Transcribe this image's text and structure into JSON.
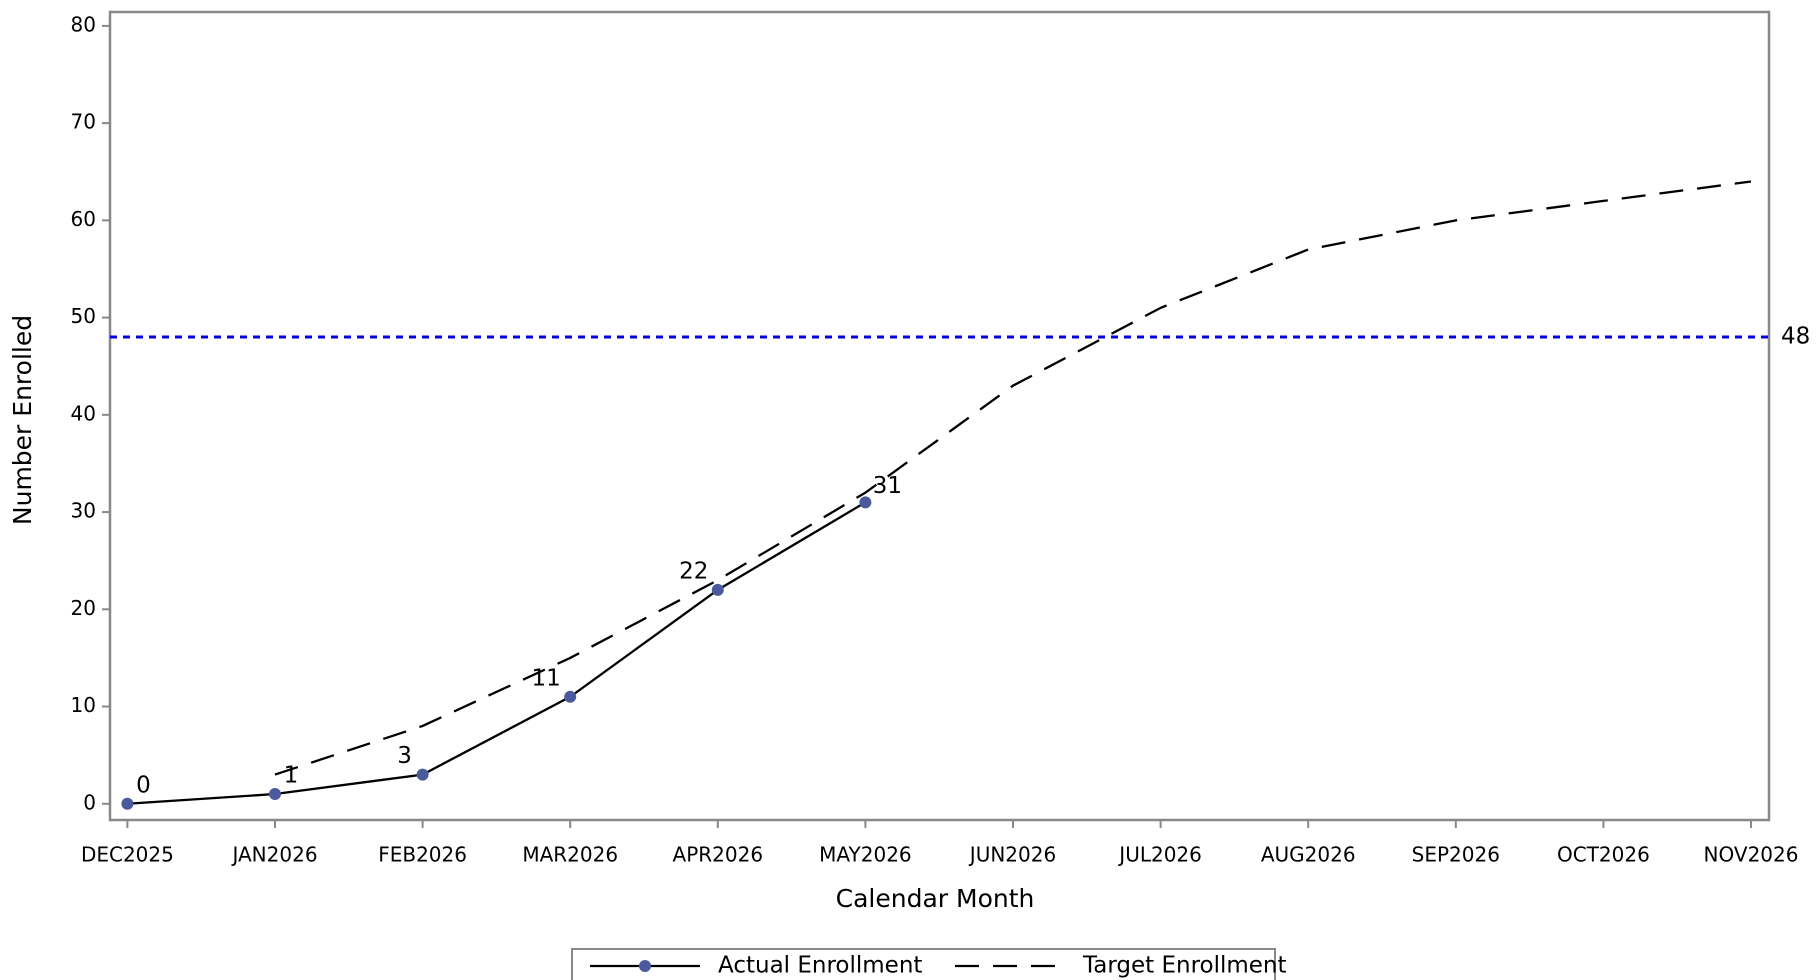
{
  "chart_data": {
    "type": "line",
    "x_label": "Calendar Month",
    "y_label": "Number Enrolled",
    "categories": [
      "DEC2025",
      "JAN2026",
      "FEB2026",
      "MAR2026",
      "APR2026",
      "MAY2026",
      "JUN2026",
      "JUL2026",
      "AUG2026",
      "SEP2026",
      "OCT2026",
      "NOV2026"
    ],
    "series": [
      {
        "name": "Actual Enrollment",
        "color": "#000000",
        "marker_color": "#4a5a9c",
        "dash": "solid",
        "markers": true,
        "data_labels": true,
        "values": [
          0,
          1,
          3,
          11,
          22,
          31,
          null,
          null,
          null,
          null,
          null,
          null
        ]
      },
      {
        "name": "Target Enrollment",
        "color": "#000000",
        "dash": "dashed",
        "markers": false,
        "data_labels": false,
        "values": [
          null,
          3,
          8,
          15,
          23,
          32,
          43,
          51,
          57,
          60,
          62,
          64
        ]
      }
    ],
    "reference_line": {
      "value": 48,
      "color": "#0000e0"
    },
    "ylim": [
      -1.67,
      81.43
    ],
    "yticks": [
      0,
      10,
      20,
      30,
      40,
      50,
      60,
      70,
      80
    ],
    "legend": "bottom"
  }
}
